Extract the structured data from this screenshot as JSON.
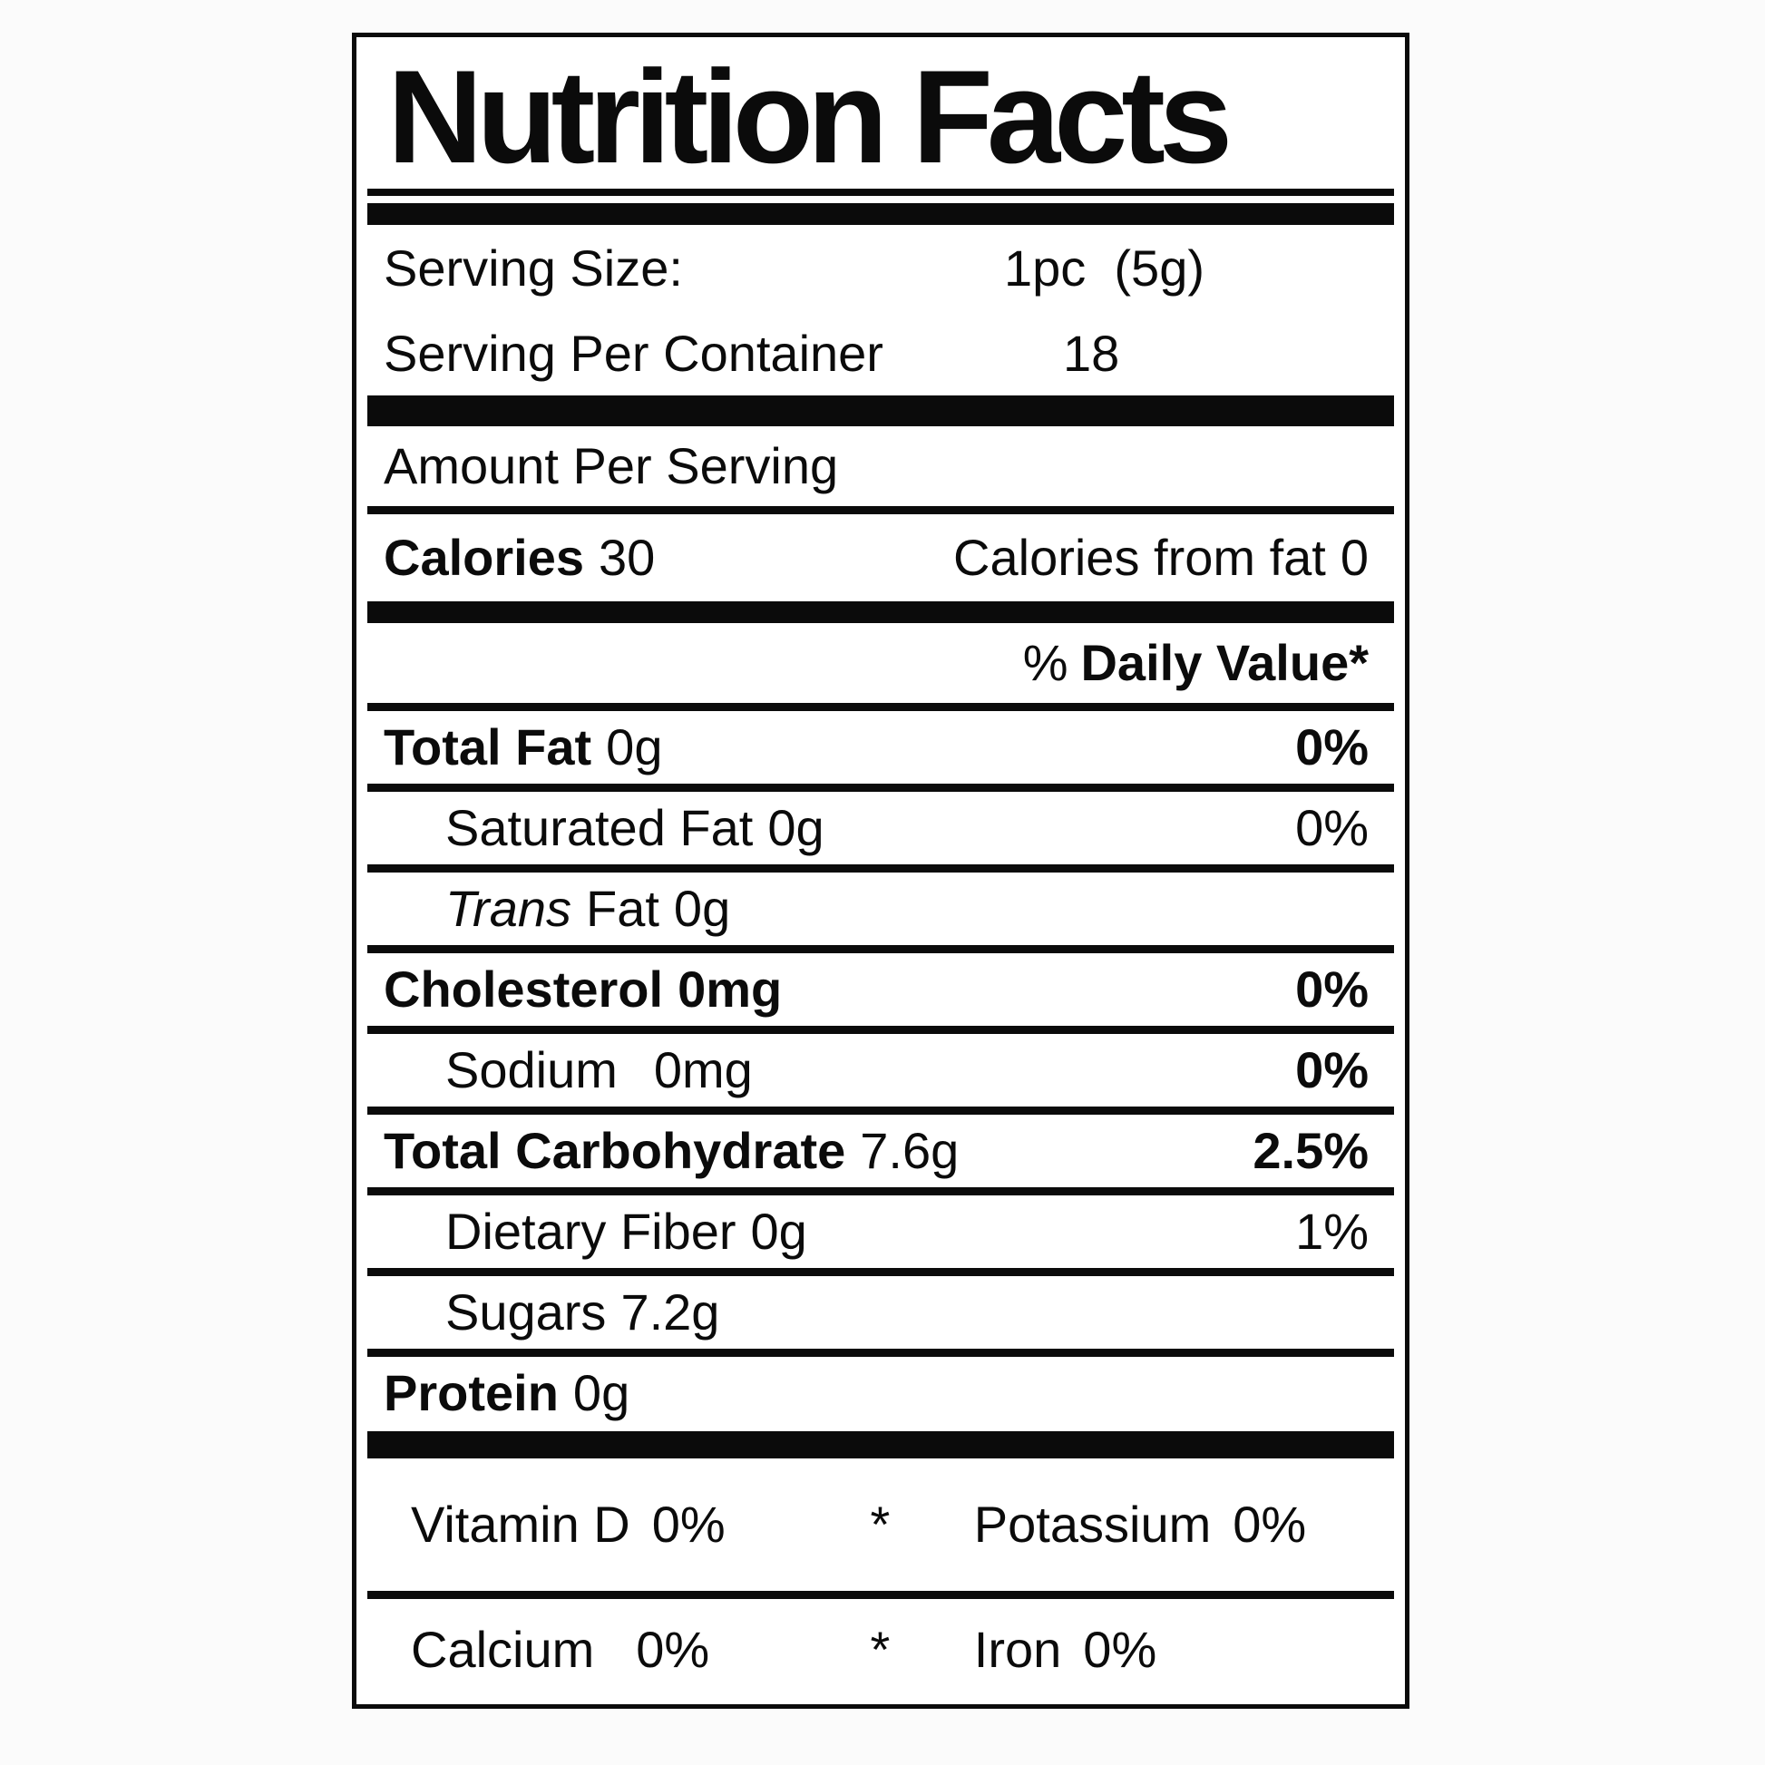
{
  "label": {
    "title": "Nutrition Facts",
    "serving_size": {
      "label": "Serving Size:",
      "value": "1pc  (5g)"
    },
    "servings_per_container": {
      "label": "Serving Per Container",
      "value": "18"
    },
    "amount_per_serving": "Amount Per Serving",
    "calories": {
      "label": "Calories",
      "value": "30"
    },
    "calories_from_fat": {
      "label": "Calories from fat",
      "value": "0"
    },
    "daily_value_header": {
      "percent_sign": "%",
      "text": "Daily Value*"
    },
    "nutrients": [
      {
        "name": "Total Fat",
        "amount": "0g",
        "daily_value": "0%"
      },
      {
        "name": "Saturated Fat",
        "amount": "0g",
        "daily_value": "0%"
      },
      {
        "name": "Trans",
        "name_rest": "Fat",
        "amount": "0g",
        "daily_value": ""
      },
      {
        "name": "Cholesterol",
        "amount": "0mg",
        "daily_value": "0%"
      },
      {
        "name": "Sodium",
        "amount": "0mg",
        "daily_value": "0%"
      },
      {
        "name": "Total Carbohydrate",
        "amount": "7.6g",
        "daily_value": "2.5%"
      },
      {
        "name": "Dietary Fiber",
        "amount": "0g",
        "daily_value": "1%"
      },
      {
        "name": "Sugars",
        "amount": "7.2g",
        "daily_value": ""
      },
      {
        "name": "Protein",
        "amount": "0g",
        "daily_value": ""
      }
    ],
    "micronutrients": [
      {
        "left_label": "Vitamin D",
        "left_value": "0%",
        "separator": "*",
        "right_label": "Potassium",
        "right_value": "0%"
      },
      {
        "left_label": "Calcium",
        "left_value": "0%",
        "separator": "*",
        "right_label": "Iron",
        "right_value": "0%"
      }
    ],
    "text_color": "#0b0b0b",
    "background_color": "#ffffff"
  }
}
